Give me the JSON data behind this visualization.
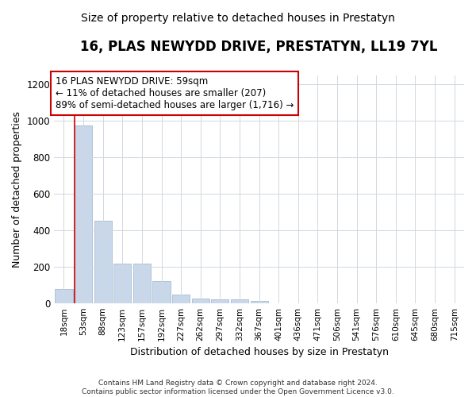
{
  "title": "16, PLAS NEWYDD DRIVE, PRESTATYN, LL19 7YL",
  "subtitle": "Size of property relative to detached houses in Prestatyn",
  "xlabel": "Distribution of detached houses by size in Prestatyn",
  "ylabel": "Number of detached properties",
  "footer": "Contains HM Land Registry data © Crown copyright and database right 2024.\nContains public sector information licensed under the Open Government Licence v3.0.",
  "categories": [
    "18sqm",
    "53sqm",
    "88sqm",
    "123sqm",
    "157sqm",
    "192sqm",
    "227sqm",
    "262sqm",
    "297sqm",
    "332sqm",
    "367sqm",
    "401sqm",
    "436sqm",
    "471sqm",
    "506sqm",
    "541sqm",
    "576sqm",
    "610sqm",
    "645sqm",
    "680sqm",
    "715sqm"
  ],
  "values": [
    78,
    975,
    450,
    215,
    215,
    120,
    47,
    25,
    20,
    20,
    12,
    0,
    0,
    0,
    0,
    0,
    0,
    0,
    0,
    0,
    0
  ],
  "bar_color": "#c8d8ea",
  "bar_edge_color": "#a8bcd0",
  "property_line_color": "#cc0000",
  "property_line_idx": 1,
  "annotation_text": "16 PLAS NEWYDD DRIVE: 59sqm\n← 11% of detached houses are smaller (207)\n89% of semi-detached houses are larger (1,716) →",
  "annotation_box_color": "white",
  "annotation_box_edge": "#cc0000",
  "ylim": [
    0,
    1250
  ],
  "yticks": [
    0,
    200,
    400,
    600,
    800,
    1000,
    1200
  ],
  "grid_color": "#d0d8e0",
  "bg_color": "#ffffff",
  "plot_bg_color": "#ffffff",
  "title_fontsize": 12,
  "subtitle_fontsize": 10
}
